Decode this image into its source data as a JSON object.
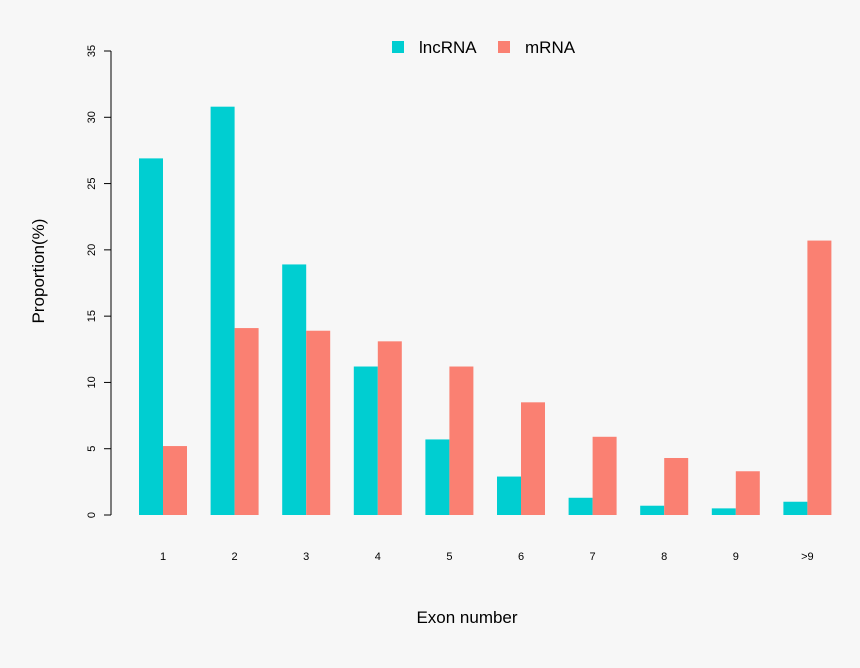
{
  "chart_data": {
    "type": "bar",
    "categories": [
      "1",
      "2",
      "3",
      "4",
      "5",
      "6",
      "7",
      "8",
      "9",
      ">9"
    ],
    "series": [
      {
        "name": "lncRNA",
        "color": "#00ced1",
        "values": [
          26.9,
          30.8,
          18.9,
          11.2,
          5.7,
          2.9,
          1.3,
          0.7,
          0.5,
          1.0
        ]
      },
      {
        "name": "mRNA",
        "color": "#fa8072",
        "values": [
          5.2,
          14.1,
          13.9,
          13.1,
          11.2,
          8.5,
          5.9,
          4.3,
          3.3,
          20.7
        ]
      }
    ],
    "xlabel": "Exon number",
    "ylabel": "Proportion(%)",
    "ylim": [
      0,
      35
    ],
    "yticks": [
      0,
      5,
      10,
      15,
      20,
      25,
      30,
      35
    ],
    "grid": false,
    "legend": "top-center"
  }
}
